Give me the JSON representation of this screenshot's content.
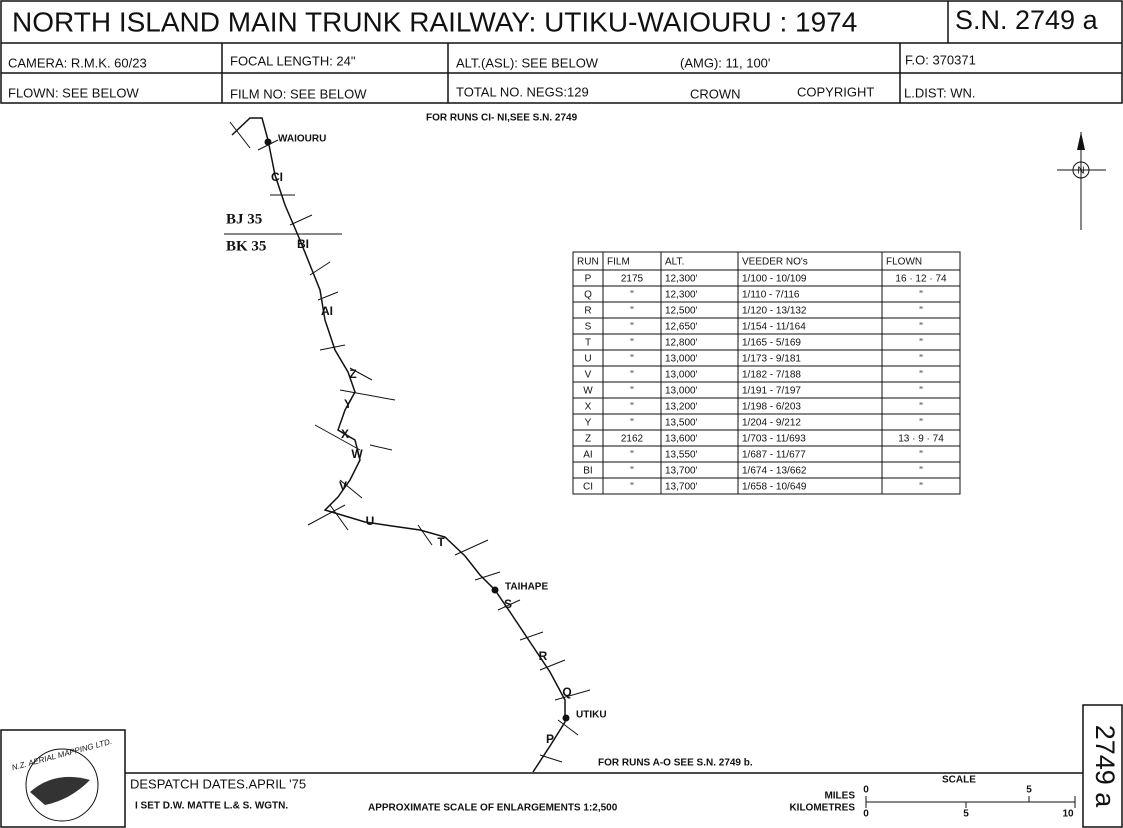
{
  "header": {
    "title": "NORTH ISLAND MAIN TRUNK RAILWAY: UTIKU-WAIOURU : 1974",
    "sheet_no": "S.N. 2749 a",
    "camera": "CAMERA: R.M.K. 60/23",
    "focal_length": "FOCAL LENGTH: 24\"",
    "alt": "ALT.(ASL): SEE BELOW",
    "amg": "(AMG): 11, 100'",
    "fo": "F.O: 370371",
    "flown": "FLOWN: SEE BELOW",
    "film_no": "FILM NO: SEE BELOW",
    "total_negs": "TOTAL NO. NEGS:129",
    "crown": "CROWN",
    "copyright": "COPYRIGHT",
    "l_dist": "L.DIST: WN."
  },
  "map": {
    "note_top": "FOR RUNS CI- NI,SEE S.N. 2749",
    "note_bottom": "FOR RUNS A-O SEE S.N. 2749 b.",
    "places": [
      "WAIOURU",
      "TAIHAPE",
      "UTIKU"
    ],
    "sheets": [
      "BJ 35",
      "BK 35"
    ],
    "north": "N",
    "runs": [
      "CI",
      "BI",
      "AI",
      "Z",
      "Y",
      "X",
      "W",
      "V",
      "U",
      "T",
      "S",
      "R",
      "Q",
      "P"
    ]
  },
  "table": {
    "header": [
      "RUN",
      "FILM",
      "ALT.",
      "VEEDER NO's",
      "FLOWN"
    ],
    "rows": [
      [
        "P",
        "2175",
        "12,300'",
        "1/100 - 10/109",
        "16 · 12 · 74"
      ],
      [
        "Q",
        "\"",
        "12,300'",
        "1/110 - 7/116",
        "\""
      ],
      [
        "R",
        "\"",
        "12,500'",
        "1/120 - 13/132",
        "\""
      ],
      [
        "S",
        "\"",
        "12,650'",
        "1/154 - 11/164",
        "\""
      ],
      [
        "T",
        "\"",
        "12,800'",
        "1/165 - 5/169",
        "\""
      ],
      [
        "U",
        "\"",
        "13,000'",
        "1/173 - 9/181",
        "\""
      ],
      [
        "V",
        "\"",
        "13,000'",
        "1/182 - 7/188",
        "\""
      ],
      [
        "W",
        "\"",
        "13,000'",
        "1/191 - 7/197",
        "\""
      ],
      [
        "X",
        "\"",
        "13,200'",
        "1/198 - 6/203",
        "\""
      ],
      [
        "Y",
        "\"",
        "13,500'",
        "1/204 - 9/212",
        "\""
      ],
      [
        "Z",
        "2162",
        "13,600'",
        "1/703 - 11/693",
        "13 · 9 · 74"
      ],
      [
        "AI",
        "\"",
        "13,550'",
        "1/687 - 11/677",
        "\""
      ],
      [
        "BI",
        "\"",
        "13,700'",
        "1/674 - 13/662",
        "\""
      ],
      [
        "CI",
        "\"",
        "13,700'",
        "1/658 - 10/649",
        "\""
      ]
    ]
  },
  "footer": {
    "despatch": "DESPATCH DATES.APRIL '75",
    "set": "I SET D.W. MATTE L.& S. WGTN.",
    "approx_scale": "APPROXIMATE SCALE OF ENLARGEMENTS 1:2,500",
    "scale": "SCALE",
    "miles": "MILES",
    "kilometres": "KILOMETRES",
    "mile_ticks": [
      "0",
      "5"
    ],
    "km_ticks": [
      "0",
      "5",
      "10"
    ],
    "logo": "N.Z. AERIAL MAPPING LTD.",
    "side": "2749 a"
  }
}
